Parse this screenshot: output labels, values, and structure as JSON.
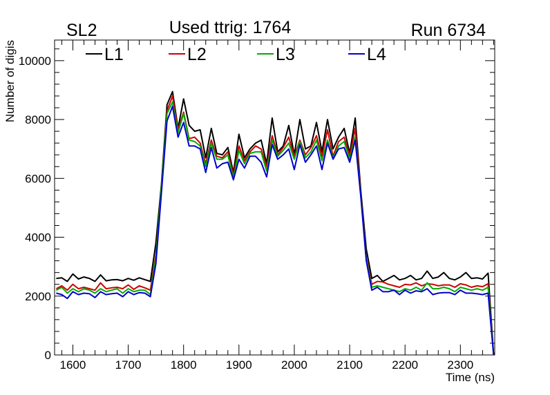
{
  "chart_data": {
    "type": "line",
    "title": "Used ttrig: 1764",
    "left_label": "SL2",
    "right_label": "Run 6734",
    "xlabel": "Time (ns)",
    "ylabel": "Number of digis",
    "xlim": [
      1567,
      2362
    ],
    "ylim": [
      0,
      10700
    ],
    "x_ticks": [
      1600,
      1700,
      1800,
      1900,
      2000,
      2100,
      2200,
      2300
    ],
    "y_ticks": [
      0,
      2000,
      4000,
      6000,
      8000,
      10000
    ],
    "grid": false,
    "legend_placement": "top-left",
    "x": [
      1570,
      1580,
      1590,
      1600,
      1610,
      1620,
      1630,
      1640,
      1650,
      1660,
      1670,
      1680,
      1690,
      1700,
      1710,
      1720,
      1730,
      1740,
      1750,
      1760,
      1770,
      1780,
      1790,
      1800,
      1810,
      1820,
      1830,
      1840,
      1850,
      1860,
      1870,
      1880,
      1890,
      1900,
      1910,
      1920,
      1930,
      1940,
      1950,
      1960,
      1970,
      1980,
      1990,
      2000,
      2010,
      2020,
      2030,
      2040,
      2050,
      2060,
      2070,
      2080,
      2090,
      2100,
      2110,
      2120,
      2130,
      2140,
      2150,
      2160,
      2170,
      2180,
      2190,
      2200,
      2210,
      2220,
      2230,
      2240,
      2250,
      2260,
      2270,
      2280,
      2290,
      2300,
      2310,
      2320,
      2330,
      2340,
      2350,
      2360
    ],
    "series": [
      {
        "name": "L1",
        "color": "#000000",
        "values": [
          2600,
          2620,
          2500,
          2750,
          2580,
          2650,
          2600,
          2500,
          2720,
          2520,
          2550,
          2560,
          2520,
          2600,
          2540,
          2620,
          2560,
          2500,
          3800,
          5800,
          8500,
          8950,
          7700,
          8700,
          7800,
          7600,
          7650,
          6700,
          7700,
          6850,
          6800,
          7050,
          6200,
          7500,
          6700,
          7000,
          7200,
          7300,
          6500,
          8050,
          6900,
          7100,
          7800,
          6800,
          8000,
          7000,
          7100,
          7900,
          6900,
          8000,
          7000,
          7400,
          7700,
          6850,
          8050,
          5600,
          3600,
          2600,
          2700,
          2500,
          2600,
          2700,
          2550,
          2600,
          2700,
          2550,
          2600,
          2850,
          2600,
          2650,
          2800,
          2600,
          2550,
          2650,
          2800,
          2600,
          2620,
          2580,
          2780,
          0
        ]
      },
      {
        "name": "L2",
        "color": "#cc0000",
        "values": [
          2250,
          2350,
          2200,
          2400,
          2250,
          2300,
          2250,
          2200,
          2450,
          2250,
          2280,
          2300,
          2250,
          2380,
          2230,
          2350,
          2280,
          2200,
          3400,
          5700,
          8300,
          8800,
          7650,
          8250,
          7350,
          7400,
          7200,
          6500,
          7300,
          6750,
          6700,
          6900,
          6100,
          7100,
          6600,
          6900,
          7100,
          7000,
          6400,
          7450,
          6800,
          7050,
          7400,
          6750,
          7300,
          6800,
          7050,
          7450,
          6750,
          7650,
          6750,
          7250,
          7400,
          6750,
          7700,
          5500,
          3300,
          2400,
          2500,
          2480,
          2400,
          2350,
          2300,
          2400,
          2380,
          2450,
          2350,
          2420,
          2400,
          2350,
          2380,
          2380,
          2300,
          2420,
          2380,
          2300,
          2350,
          2320,
          2420,
          0
        ]
      },
      {
        "name": "L3",
        "color": "#00aa00",
        "values": [
          2200,
          2300,
          2100,
          2250,
          2150,
          2250,
          2200,
          2100,
          2250,
          2150,
          2200,
          2250,
          2100,
          2250,
          2150,
          2200,
          2200,
          2050,
          3300,
          5700,
          8200,
          8600,
          7550,
          8200,
          7300,
          7250,
          7100,
          6400,
          7200,
          6650,
          6650,
          6800,
          6000,
          6950,
          6500,
          6850,
          6900,
          6900,
          6250,
          7300,
          6750,
          6950,
          7200,
          6650,
          7250,
          6700,
          6900,
          7300,
          6600,
          7300,
          6700,
          7100,
          7250,
          6650,
          7400,
          5450,
          3250,
          2300,
          2350,
          2300,
          2250,
          2200,
          2150,
          2250,
          2200,
          2300,
          2200,
          2450,
          2250,
          2250,
          2300,
          2250,
          2150,
          2300,
          2250,
          2200,
          2250,
          2200,
          2300,
          0
        ]
      },
      {
        "name": "L4",
        "color": "#0000cc",
        "values": [
          2100,
          2050,
          1920,
          2150,
          2050,
          2100,
          2080,
          1950,
          2150,
          2050,
          2080,
          2100,
          1980,
          2150,
          2050,
          2120,
          2100,
          1980,
          3100,
          5500,
          7950,
          8450,
          7400,
          7900,
          7100,
          7100,
          7000,
          6200,
          7050,
          6350,
          6500,
          6550,
          5950,
          6650,
          6350,
          6750,
          6750,
          6550,
          6050,
          7150,
          6650,
          6800,
          7000,
          6300,
          7150,
          6550,
          6800,
          7100,
          6300,
          7200,
          6650,
          7000,
          7050,
          6550,
          7300,
          5400,
          3200,
          2200,
          2300,
          2150,
          2150,
          2200,
          2050,
          2200,
          2100,
          2180,
          2150,
          2250,
          2050,
          2100,
          2120,
          2120,
          2050,
          2200,
          2100,
          2100,
          2080,
          2050,
          2100,
          0
        ]
      }
    ]
  }
}
